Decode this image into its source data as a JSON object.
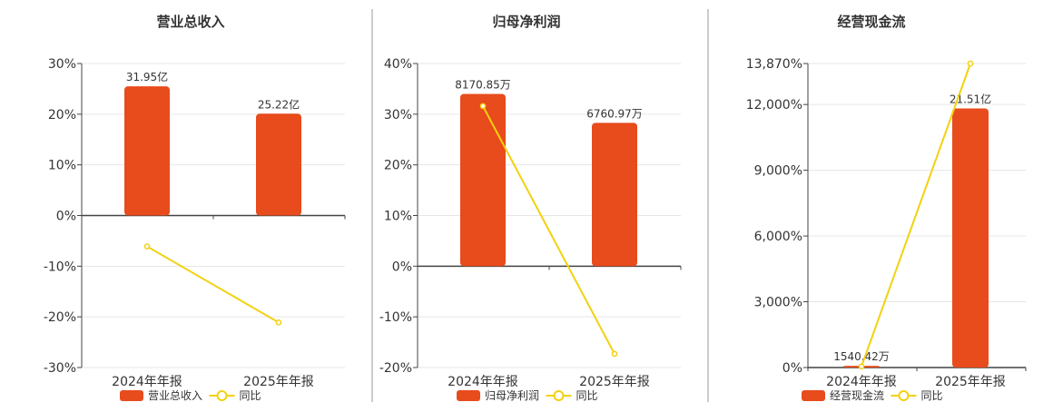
{
  "colors": {
    "bar": "#e84b1c",
    "line": "#f2d10f",
    "axis": "#444444",
    "grid": "#e6e6e6",
    "divider": "#9a9a9a",
    "text": "#333333"
  },
  "chart_data": [
    {
      "type": "bar",
      "title": "营业总收入",
      "categories": [
        "2024年年报",
        "2025年年报"
      ],
      "bar_series": {
        "name": "营业总收入",
        "values": [
          25.5,
          20.1
        ],
        "labels": [
          "31.95亿",
          "25.22亿"
        ]
      },
      "line_series": {
        "name": "同比",
        "values": [
          -6.1,
          -21.1
        ]
      },
      "y_ticks": [
        "30%",
        "20%",
        "10%",
        "0%",
        "-10%",
        "-20%",
        "-30%"
      ],
      "ylim": [
        -30,
        30
      ],
      "grid": true,
      "legend": "bottom"
    },
    {
      "type": "bar",
      "title": "归母净利润",
      "categories": [
        "2024年年报",
        "2025年年报"
      ],
      "bar_series": {
        "name": "归母净利润",
        "values": [
          34.0,
          28.3
        ],
        "labels": [
          "8170.85万",
          "6760.97万"
        ]
      },
      "line_series": {
        "name": "同比",
        "values": [
          31.6,
          -17.3
        ]
      },
      "y_ticks": [
        "40%",
        "30%",
        "20%",
        "10%",
        "0%",
        "-10%",
        "-20%"
      ],
      "ylim": [
        -20,
        40
      ],
      "grid": true,
      "legend": "bottom"
    },
    {
      "type": "bar",
      "title": "经营现金流",
      "categories": [
        "2024年年报",
        "2025年年报"
      ],
      "bar_series": {
        "name": "经营现金流",
        "values": [
          77,
          11820
        ],
        "labels": [
          "1540.42万",
          "21.51亿"
        ]
      },
      "line_series": {
        "name": "同比",
        "values": [
          50,
          13870
        ]
      },
      "y_ticks": [
        "13,870%",
        "12,000%",
        "9,000%",
        "6,000%",
        "3,000%",
        "0%"
      ],
      "ylim": [
        0,
        13870
      ],
      "grid": true,
      "legend": "bottom"
    }
  ]
}
